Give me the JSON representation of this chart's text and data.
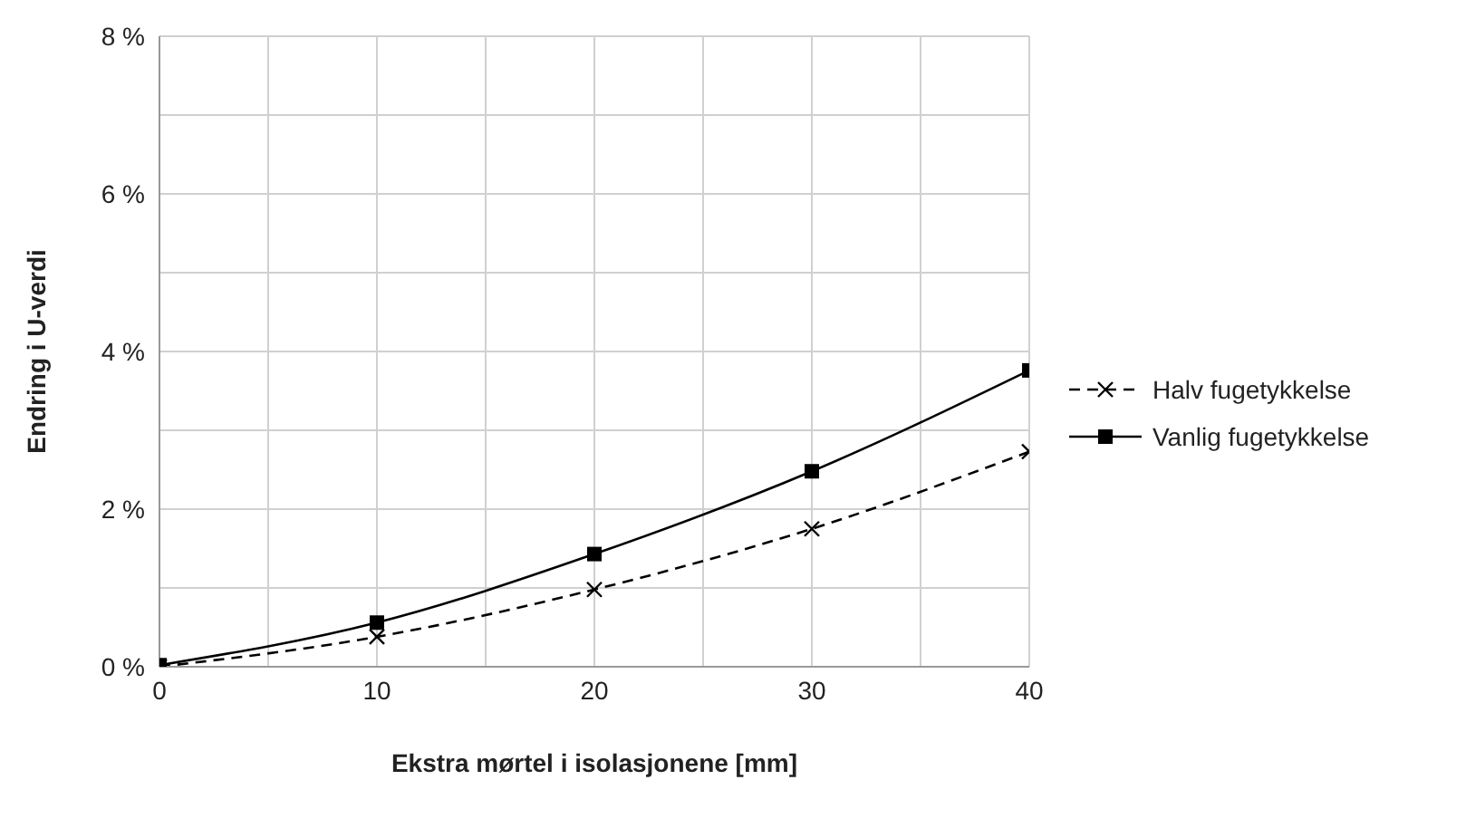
{
  "chart_data": {
    "type": "line",
    "xlabel": "Ekstra mørtel i isolasjonene [mm]",
    "ylabel": "Endring i U-verdi",
    "x": [
      0,
      10,
      20,
      30,
      40
    ],
    "series": [
      {
        "name": "Halv fugetykkelse",
        "color": "#000000",
        "marker": "cross",
        "line_style": "dashed",
        "values": [
          0,
          0.38,
          0.98,
          1.75,
          2.73
        ]
      },
      {
        "name": "Vanlig fugetykkelse",
        "color": "#000000",
        "marker": "square",
        "line_style": "solid",
        "values": [
          0.02,
          0.56,
          1.43,
          2.48,
          3.76
        ]
      }
    ],
    "xlim": [
      0,
      40
    ],
    "xticks": [
      0,
      {
        "value": 5,
        "label": null
      },
      10,
      {
        "value": 15,
        "label": null
      },
      20,
      {
        "value": 25,
        "label": null
      },
      30,
      {
        "value": 35,
        "label": null
      },
      40
    ],
    "ylim": [
      0,
      8
    ],
    "yticks": [
      {
        "value": 0,
        "label": "0 %"
      },
      {
        "value": 1,
        "label": null
      },
      {
        "value": 2,
        "label": "2 %"
      },
      {
        "value": 3,
        "label": null
      },
      {
        "value": 4,
        "label": "4 %"
      },
      {
        "value": 5,
        "label": null
      },
      {
        "value": 6,
        "label": "6 %"
      },
      {
        "value": 7,
        "label": null
      },
      {
        "value": 8,
        "label": "8 %"
      }
    ],
    "grid": true,
    "legend": "right"
  }
}
